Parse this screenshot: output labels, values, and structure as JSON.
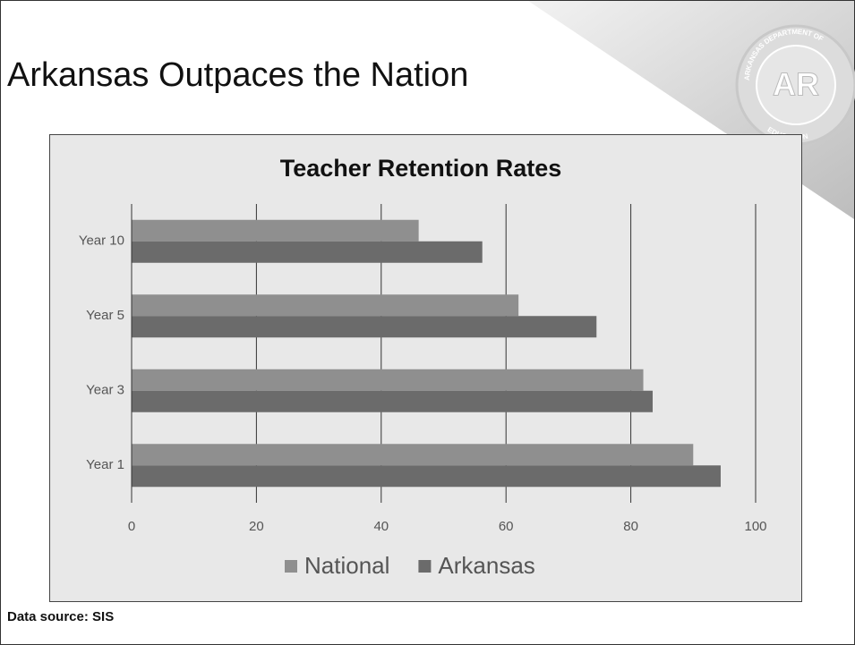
{
  "slide": {
    "title": "Arkansas Outpaces the Nation",
    "source": "Data source: SIS",
    "logo": {
      "center": "AR",
      "top": "ARKANSAS DEPARTMENT OF",
      "bottom": "EDUCATION"
    }
  },
  "chart_data": {
    "type": "hbar",
    "title": "Teacher Retention Rates",
    "categories": [
      "Year 1",
      "Year 3",
      "Year 5",
      "Year 10"
    ],
    "series": [
      {
        "name": "National",
        "color": "#8f8f8f",
        "values": [
          90,
          82,
          62,
          46
        ]
      },
      {
        "name": "Arkansas",
        "color": "#6b6b6b",
        "values": [
          94.4,
          83.5,
          74.5,
          56.2
        ]
      }
    ],
    "xlim": [
      0,
      100
    ],
    "xticks": [
      0,
      20,
      40,
      60,
      80,
      100
    ],
    "grid": true,
    "legend": "bottom"
  }
}
